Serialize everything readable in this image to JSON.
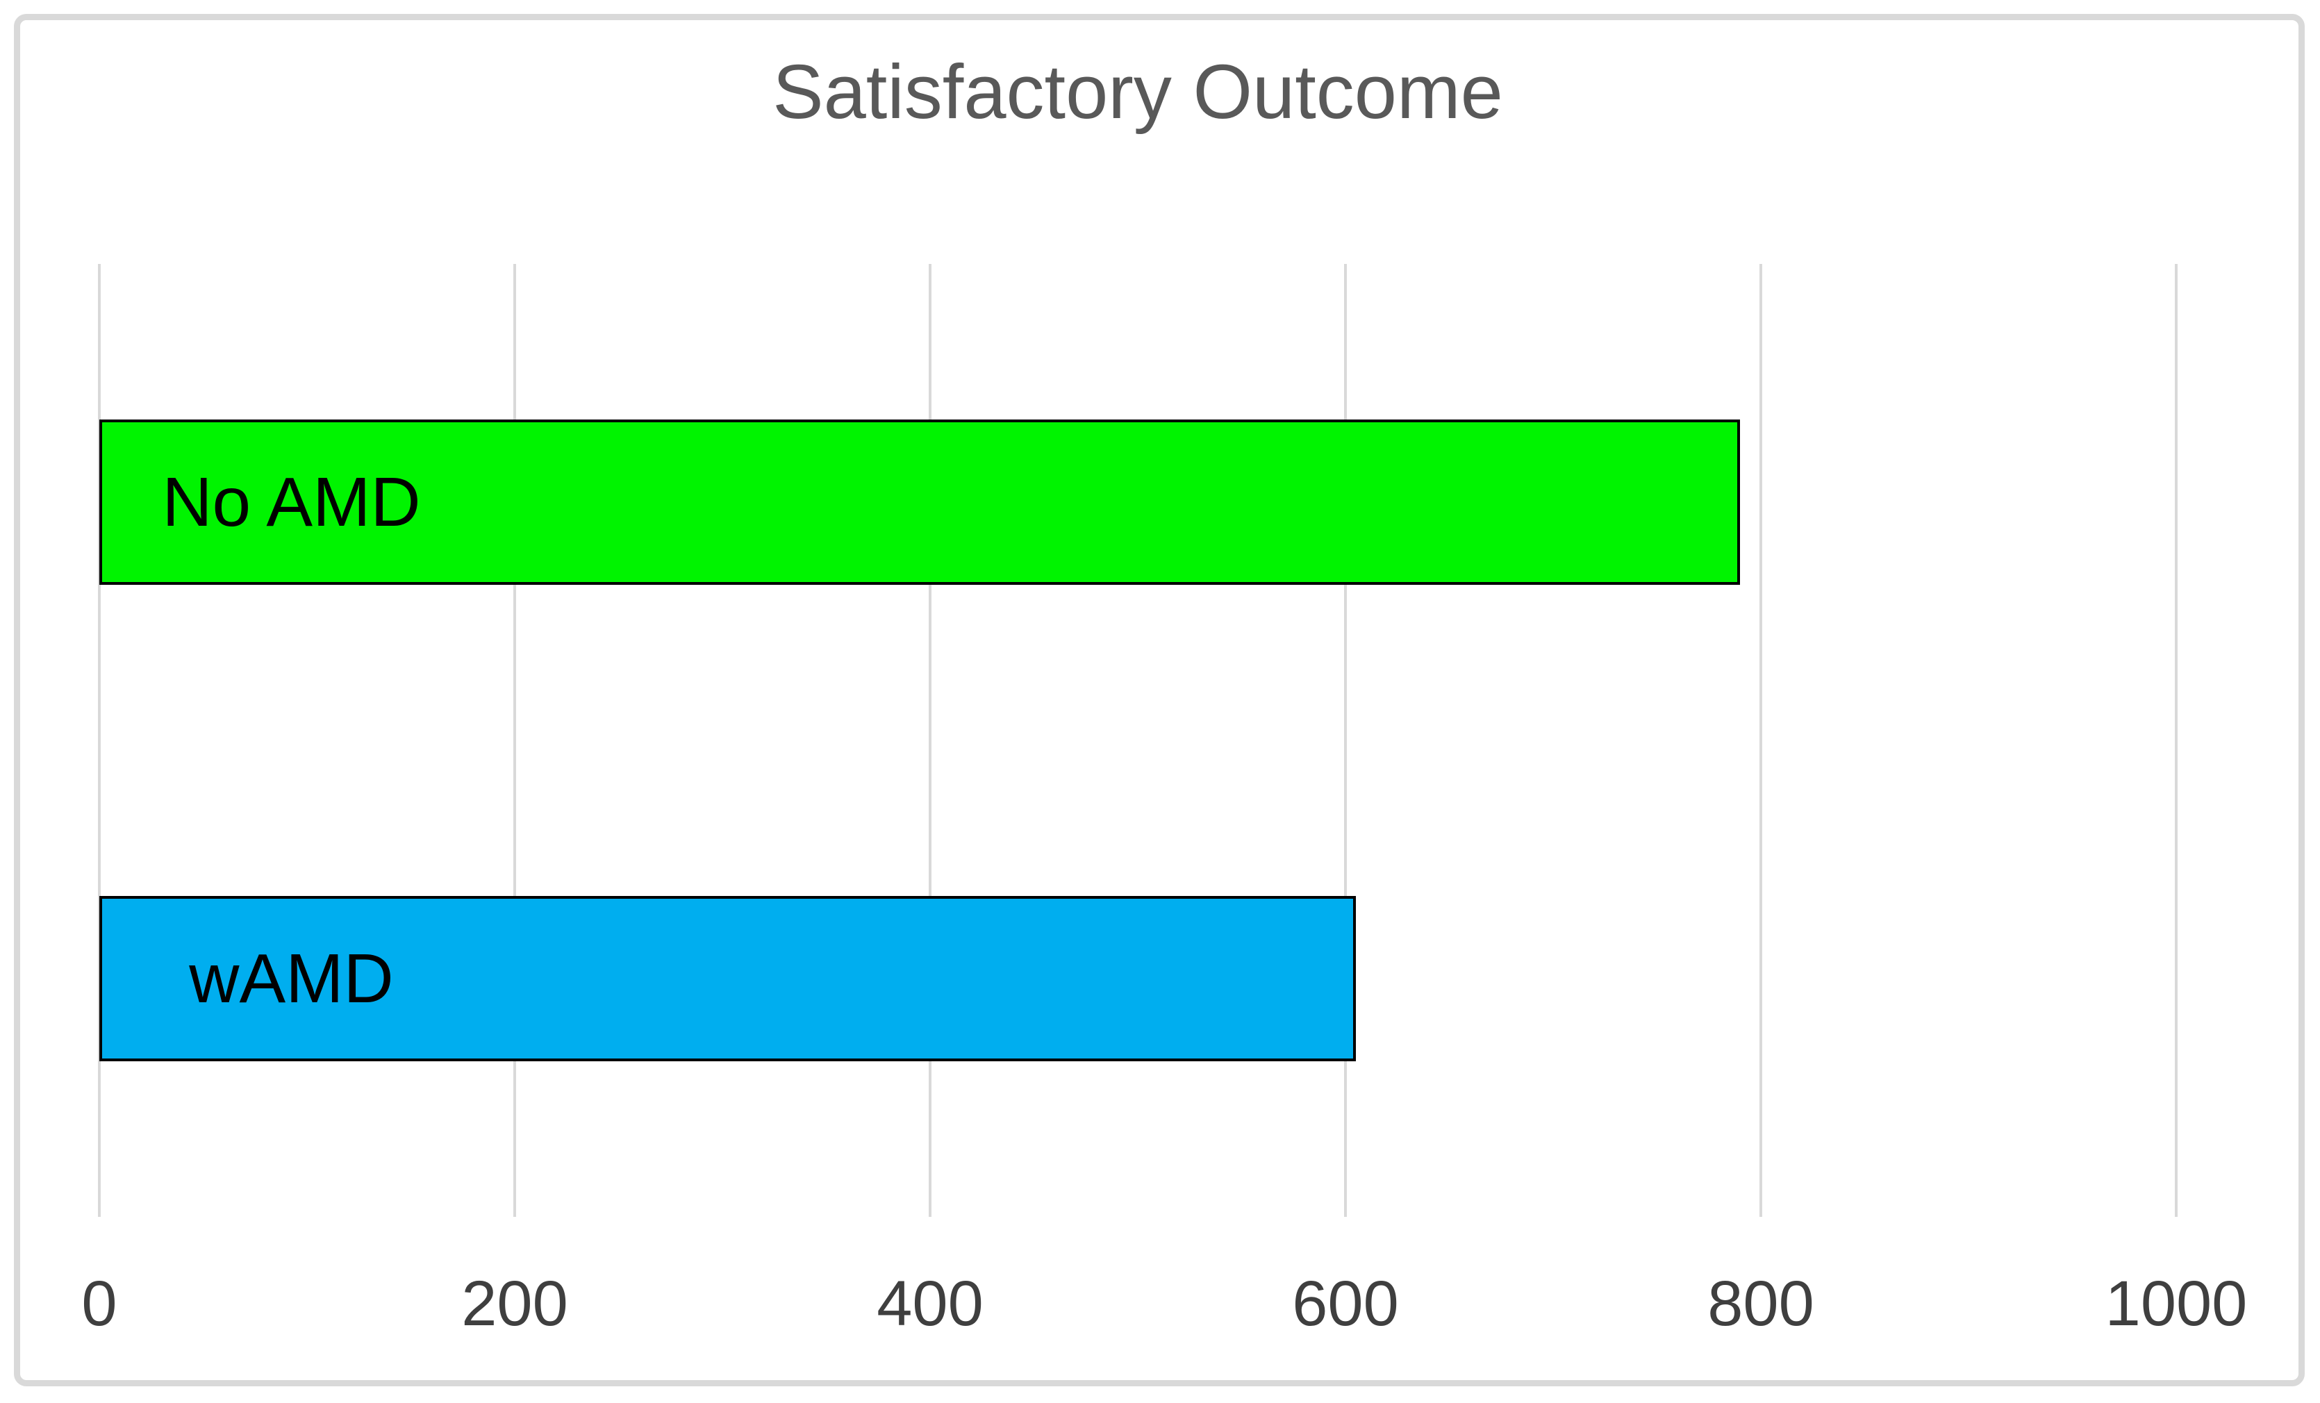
{
  "chart_data": {
    "type": "bar",
    "orientation": "horizontal",
    "title": "Satisfactory Outcome",
    "categories": [
      "No AMD",
      "wAMD"
    ],
    "values": [
      790,
      605
    ],
    "bar_colors": [
      "#00F400",
      "#00AEEF"
    ],
    "bar_border_color": "#000000",
    "xlabel": "",
    "ylabel": "",
    "xlim": [
      0,
      1000
    ],
    "xticks": [
      "0",
      "200",
      "400",
      "600",
      "800",
      "1000"
    ],
    "grid": "vertical",
    "gridline_color": "#D9D9D9",
    "legend": "none",
    "label_position": "inside-base"
  },
  "colors": {
    "title_text": "#595959",
    "axis_text": "#3F3F3F",
    "frame_border": "#D9D9D9",
    "background": "#FFFFFF"
  }
}
